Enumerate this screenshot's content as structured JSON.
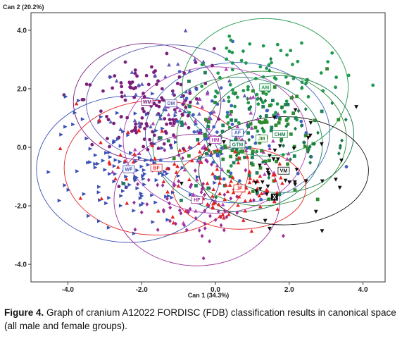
{
  "caption": {
    "label": "Figure 4.",
    "text": " Graph of cranium A12022 FORDISC (FDB) classification results in canonical space (all male and female groups)."
  },
  "chart_data": {
    "type": "scatter",
    "xlabel": "Can 1 (34.3%)",
    "ylabel": "Can 2 (20.2%)",
    "xlim": [
      -5.0,
      4.6
    ],
    "ylim": [
      -4.6,
      4.6
    ],
    "xticks": [
      "-4.0",
      "-2.0",
      "0.0",
      "2.0",
      "4.0"
    ],
    "xtick_values": [
      -4,
      -2,
      0,
      2,
      4
    ],
    "yticks": [
      "4.0",
      "2.0",
      "0.0",
      "-2.0",
      "-4.0"
    ],
    "ytick_values": [
      4,
      2,
      0,
      -2,
      -4
    ],
    "grid": false,
    "unknown": {
      "label": "X",
      "x": 1.6,
      "y": -1.7
    },
    "groups": [
      {
        "name": "WM",
        "color": "#7b1f7b",
        "marker": "circle",
        "centroid": [
          -1.85,
          1.55
        ],
        "ellipse": {
          "rx": 2.0,
          "ry": 2.0
        },
        "n": 130
      },
      {
        "name": "DM",
        "color": "#5a5ab4",
        "marker": "triangle",
        "centroid": [
          -1.2,
          1.5
        ],
        "ellipse": {
          "rx": 2.3,
          "ry": 2.0
        },
        "n": 45
      },
      {
        "name": "WF",
        "color": "#3a4fb4",
        "marker": "triangle-right",
        "centroid": [
          -2.35,
          -0.75
        ],
        "ellipse": {
          "rx": 2.5,
          "ry": 2.5
        },
        "n": 120
      },
      {
        "name": "BF",
        "color": "#e52222",
        "marker": "triangle",
        "centroid": [
          -1.6,
          -0.7
        ],
        "ellipse": {
          "rx": 2.5,
          "ry": 2.3
        },
        "n": 45
      },
      {
        "name": "HF",
        "color": "#9a2d9a",
        "marker": "diamond",
        "centroid": [
          -0.5,
          -1.8
        ],
        "ellipse": {
          "rx": 2.25,
          "ry": 2.25
        },
        "n": 70
      },
      {
        "name": "HM",
        "color": "#b040b0",
        "marker": "triangle",
        "centroid": [
          0.0,
          0.25
        ],
        "ellipse": {
          "rx": 2.5,
          "ry": 2.5
        },
        "n": 65
      },
      {
        "name": "AF",
        "color": "#4060c0",
        "marker": "circle",
        "centroid": [
          0.6,
          0.5
        ],
        "ellipse": {
          "rx": 2.5,
          "ry": 2.4
        },
        "n": 55
      },
      {
        "name": "GTM",
        "color": "#1e7f5a",
        "marker": "square",
        "centroid": [
          0.6,
          0.1
        ],
        "ellipse": {
          "rx": 2.3,
          "ry": 2.3
        },
        "n": 55
      },
      {
        "name": "JM",
        "color": "#2e8b2e",
        "marker": "square",
        "centroid": [
          1.25,
          0.3
        ],
        "ellipse": {
          "rx": 2.3,
          "ry": 2.3
        },
        "n": 70
      },
      {
        "name": "CHM",
        "color": "#1a7a4a",
        "marker": "diamond",
        "centroid": [
          1.75,
          0.45
        ],
        "ellipse": {
          "rx": 2.0,
          "ry": 2.0
        },
        "n": 45
      },
      {
        "name": "AM",
        "color": "#1f9a4f",
        "marker": "circle",
        "centroid": [
          1.35,
          2.05
        ],
        "ellipse": {
          "rx": 2.25,
          "ry": 2.35
        },
        "n": 90
      },
      {
        "name": "JF",
        "color": "#e52222",
        "marker": "triangle",
        "centroid": [
          0.65,
          -1.4
        ],
        "ellipse": {
          "rx": 1.8,
          "ry": 1.4
        },
        "n": 65
      },
      {
        "name": "VM",
        "color": "#111111",
        "marker": "triangle-down",
        "centroid": [
          1.85,
          -0.8
        ],
        "ellipse": {
          "rx": 2.3,
          "ry": 1.85
        },
        "n": 40
      }
    ]
  }
}
